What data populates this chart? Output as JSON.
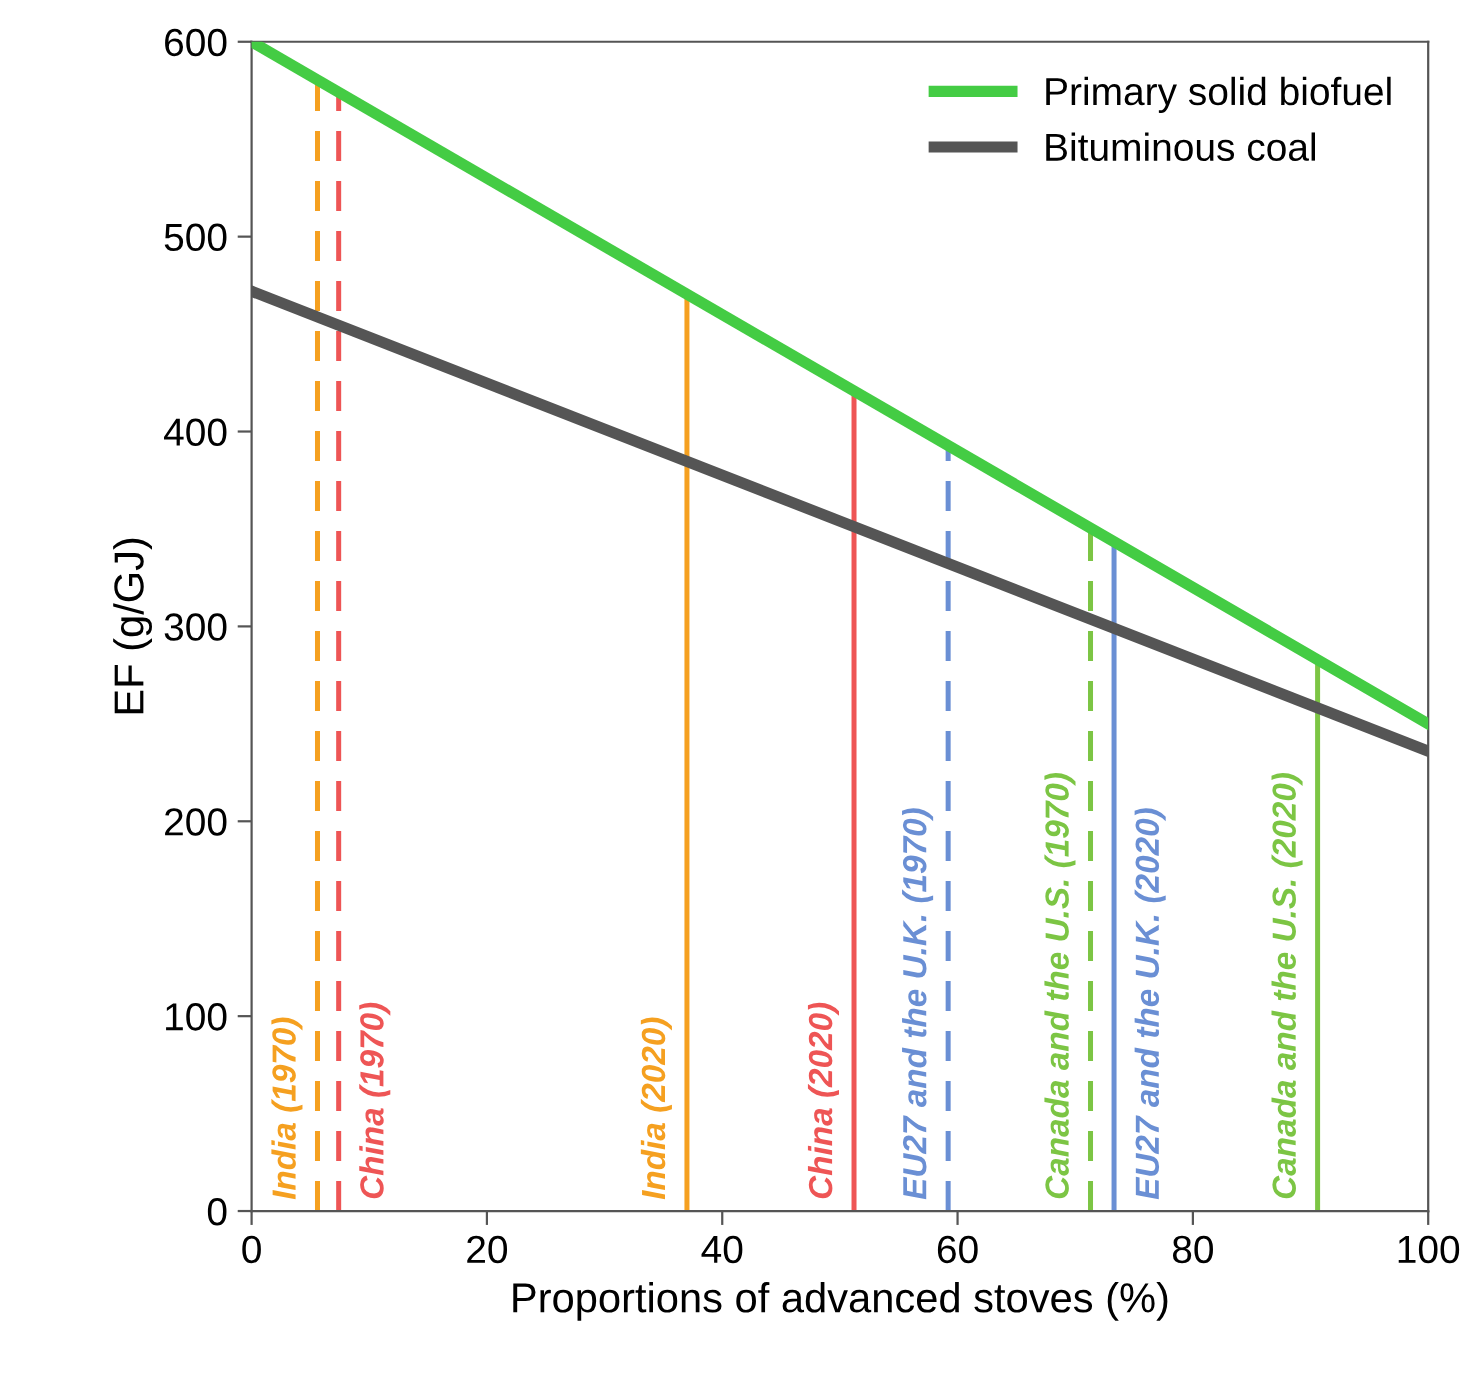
{
  "chart_data": {
    "type": "line",
    "xlabel": "Proportions of advanced stoves (%)",
    "ylabel": "EF (g/GJ)",
    "x": [
      0,
      100
    ],
    "series": [
      {
        "name": "Primary solid biofuel",
        "color": "#44cc44",
        "values": [
          600,
          250
        ]
      },
      {
        "name": "Bituminous coal",
        "color": "#555555",
        "values": [
          472,
          236
        ]
      }
    ],
    "xlim": [
      0,
      100
    ],
    "xticks": [
      0,
      20,
      40,
      60,
      80,
      100
    ],
    "ylim": [
      0,
      600
    ],
    "yticks": [
      0,
      100,
      200,
      300,
      400,
      500,
      600
    ],
    "grid": false,
    "legend": "top right",
    "marker": "none",
    "line_style": "solid",
    "ref_lines": [
      {
        "axis": "x",
        "value": 5.6,
        "label": "India (1970)",
        "color": "#f5a020",
        "line_style": "dashed"
      },
      {
        "axis": "x",
        "value": 7.4,
        "label": "China (1970)",
        "color": "#ee5555",
        "line_style": "dashed"
      },
      {
        "axis": "x",
        "value": 37.0,
        "label": "India (2020)",
        "color": "#f5a020",
        "line_style": "solid"
      },
      {
        "axis": "x",
        "value": 51.2,
        "label": "China (2020)",
        "color": "#ee5555",
        "line_style": "solid"
      },
      {
        "axis": "x",
        "value": 59.2,
        "label": "EU27 and the U.K. (1970)",
        "color": "#6a8fd4",
        "line_style": "dashed"
      },
      {
        "axis": "x",
        "value": 71.3,
        "label": "Canada and the U.S. (1970)",
        "color": "#7cc544",
        "line_style": "dashed"
      },
      {
        "axis": "x",
        "value": 73.3,
        "label": "EU27 and the U.K. (2020)",
        "color": "#6a8fd4",
        "line_style": "solid"
      },
      {
        "axis": "x",
        "value": 90.6,
        "label": "Canada and the U.S. (2020)",
        "color": "#7cc544",
        "line_style": "solid"
      }
    ]
  }
}
